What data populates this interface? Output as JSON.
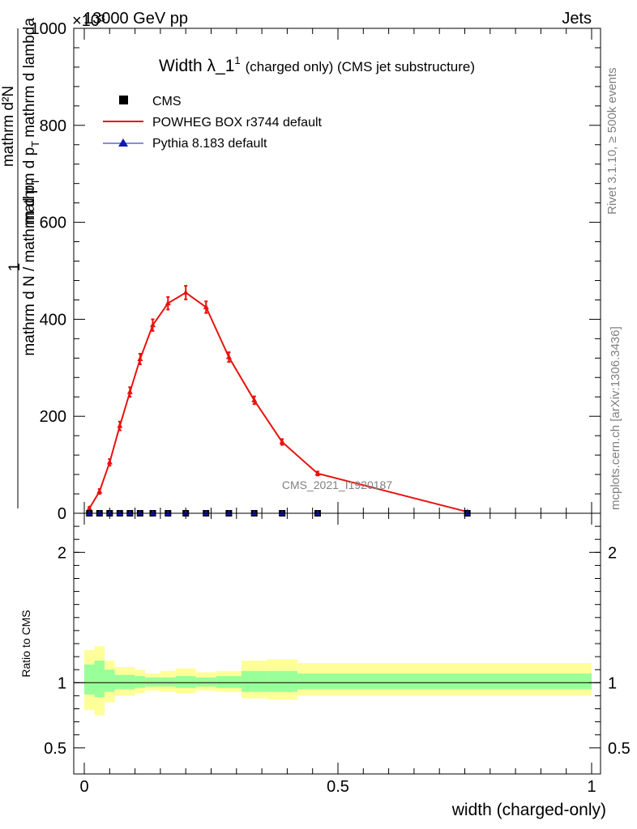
{
  "header": {
    "energy_label": "13000 GeV pp",
    "exponent_label": "×10³",
    "category_label": "Jets"
  },
  "plot": {
    "title_main": "Width λ_1",
    "title_sup": "1",
    "title_sub": "(charged only) (CMS jet substructure)",
    "ylabel_numer": "1",
    "ylabel_denom": "mathrm d N / mathrm d p",
    "ylabel_denom_sub": "T",
    "ylabel_numer2": "mathrm d²N",
    "ylabel_denom2": "mathrm d p",
    "ylabel_denom2_sub": "T",
    "ylabel_denom2_tail": "mathrm d lambda",
    "watermark": "CMS_2021_I1920187",
    "side_label_top": "Rivet 3.1.10, ≥ 500k events",
    "side_label_bottom": "mcplots.cern.ch [arXiv:1306.3436]",
    "ratio_ylabel": "Ratio to CMS",
    "xlabel": "width (charged-only)"
  },
  "legend": {
    "position": "top-left",
    "entries": [
      {
        "label": "CMS",
        "color": "#000000",
        "marker": "square"
      },
      {
        "label": "POWHEG BOX r3744 default",
        "color": "#e8120e",
        "marker": "line"
      },
      {
        "label": "Pythia 8.183 default",
        "color": "#0f1ab4",
        "marker": "triangle"
      }
    ]
  },
  "chart_data": [
    {
      "type": "line",
      "panel": "main",
      "xlim": [
        0,
        1
      ],
      "ylim": [
        0,
        1000
      ],
      "y_ticks": [
        {
          "value": 0,
          "label": "0"
        },
        {
          "value": 200,
          "label": "200"
        },
        {
          "value": 400,
          "label": "400"
        },
        {
          "value": 600,
          "label": "600"
        },
        {
          "value": 800,
          "label": "800"
        },
        {
          "value": 1000,
          "label": "1000"
        }
      ],
      "x": [
        0.01,
        0.03,
        0.05,
        0.07,
        0.09,
        0.11,
        0.135,
        0.165,
        0.2,
        0.24,
        0.285,
        0.335,
        0.39,
        0.46,
        0.755
      ],
      "series": [
        {
          "name": "CMS",
          "color": "#000000",
          "values": [
            0,
            0,
            0,
            0,
            0,
            0,
            0,
            0,
            0,
            0,
            0,
            0,
            0,
            0,
            0
          ]
        },
        {
          "name": "POWHEG BOX r3744 default",
          "color": "#e8120e",
          "values": [
            10,
            45,
            105,
            180,
            250,
            318,
            388,
            433,
            455,
            425,
            322,
            233,
            147,
            82,
            3
          ],
          "errors": [
            3,
            5,
            7,
            9,
            10,
            11,
            12,
            13,
            14,
            12,
            10,
            8,
            6,
            4,
            1
          ]
        },
        {
          "name": "Pythia 8.183 default",
          "color": "#0f1ab4",
          "values": [
            0,
            0,
            0,
            0,
            0,
            0,
            0,
            0,
            0,
            0,
            0,
            0,
            0,
            0,
            0
          ]
        }
      ]
    },
    {
      "type": "area",
      "panel": "ratio",
      "xlim": [
        0,
        1
      ],
      "ylim": [
        0.3,
        2.3
      ],
      "y_ticks": [
        {
          "value": 0.5,
          "label": "0.5"
        },
        {
          "value": 1,
          "label": "1"
        },
        {
          "value": 2,
          "label": "2"
        }
      ],
      "x_ticks": [
        {
          "value": 0,
          "label": "0"
        },
        {
          "value": 0.5,
          "label": "0.5"
        },
        {
          "value": 1,
          "label": "1"
        }
      ],
      "bins": [
        0,
        0.02,
        0.04,
        0.06,
        0.08,
        0.1,
        0.12,
        0.15,
        0.18,
        0.22,
        0.26,
        0.31,
        0.36,
        0.42,
        0.5,
        1.0
      ],
      "inner_band": [
        [
          0.91,
          1.14
        ],
        [
          0.89,
          1.17
        ],
        [
          0.93,
          1.1
        ],
        [
          0.95,
          1.06
        ],
        [
          0.95,
          1.06
        ],
        [
          0.96,
          1.05
        ],
        [
          0.97,
          1.04
        ],
        [
          0.97,
          1.04
        ],
        [
          0.96,
          1.05
        ],
        [
          0.97,
          1.04
        ],
        [
          0.96,
          1.05
        ],
        [
          0.93,
          1.09
        ],
        [
          0.93,
          1.09
        ],
        [
          0.95,
          1.07
        ],
        [
          0.95,
          1.07
        ]
      ],
      "outer_band": [
        [
          0.79,
          1.25
        ],
        [
          0.75,
          1.28
        ],
        [
          0.85,
          1.17
        ],
        [
          0.9,
          1.12
        ],
        [
          0.9,
          1.12
        ],
        [
          0.92,
          1.1
        ],
        [
          0.94,
          1.07
        ],
        [
          0.93,
          1.09
        ],
        [
          0.92,
          1.11
        ],
        [
          0.94,
          1.08
        ],
        [
          0.93,
          1.09
        ],
        [
          0.88,
          1.17
        ],
        [
          0.87,
          1.18
        ],
        [
          0.9,
          1.15
        ],
        [
          0.9,
          1.15
        ]
      ],
      "band_colors": {
        "outer": "#ffff99",
        "inner": "#99ff99"
      },
      "reference_line": 1
    }
  ]
}
